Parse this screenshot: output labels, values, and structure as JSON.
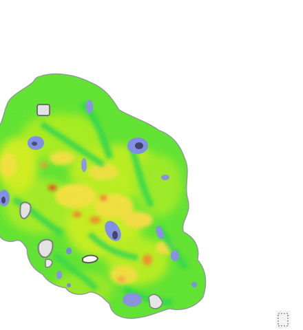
{
  "image": {
    "subject": "false-color-leaf-map",
    "colormap": {
      "background": "#ffffff",
      "edge": "#9aa7a7",
      "lowest": "#4b4f70",
      "low": "#7f8ee6",
      "mid_low": "#32d44a",
      "mid": "#7ee81e",
      "mid_high": "#d8ef1a",
      "high": "#ffd84a",
      "highest": "#e8421c",
      "hole": "#d7d7d7"
    }
  },
  "chart_data": {
    "type": "heatmap"
  }
}
